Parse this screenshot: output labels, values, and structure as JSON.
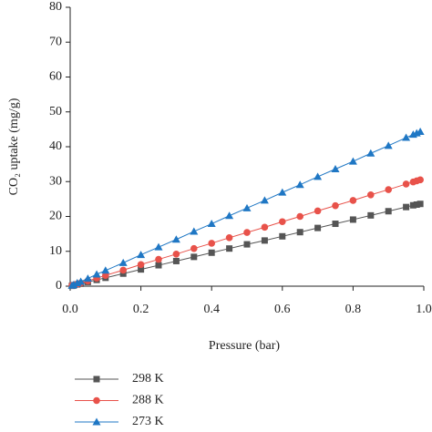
{
  "chart_data": {
    "type": "line",
    "xlabel": "Pressure (bar)",
    "ylabel": "CO₂ uptake (mg/g)",
    "x": [
      0.005,
      0.01,
      0.02,
      0.03,
      0.05,
      0.075,
      0.1,
      0.15,
      0.2,
      0.25,
      0.3,
      0.35,
      0.4,
      0.45,
      0.5,
      0.55,
      0.6,
      0.65,
      0.7,
      0.75,
      0.8,
      0.85,
      0.9,
      0.95,
      0.97,
      0.98,
      0.99
    ],
    "series": [
      {
        "name": "298 K",
        "color": "#555555",
        "marker": "square",
        "values": [
          0.1,
          0.2,
          0.5,
          0.7,
          1.2,
          1.8,
          2.4,
          3.6,
          4.8,
          6.0,
          7.2,
          8.4,
          9.6,
          10.8,
          12.0,
          13.1,
          14.3,
          15.5,
          16.7,
          17.9,
          19.1,
          20.3,
          21.5,
          22.7,
          23.2,
          23.4,
          23.6
        ]
      },
      {
        "name": "288 K",
        "color": "#e8524a",
        "marker": "circle",
        "values": [
          0.2,
          0.3,
          0.6,
          0.9,
          1.5,
          2.3,
          3.1,
          4.6,
          6.2,
          7.7,
          9.2,
          10.8,
          12.3,
          13.9,
          15.4,
          16.9,
          18.5,
          20.0,
          21.6,
          23.1,
          24.6,
          26.2,
          27.7,
          29.3,
          29.9,
          30.2,
          30.5
        ]
      },
      {
        "name": "273 K",
        "color": "#1f77c4",
        "marker": "triangle",
        "values": [
          0.2,
          0.4,
          0.9,
          1.3,
          2.2,
          3.4,
          4.5,
          6.7,
          9.0,
          11.2,
          13.4,
          15.7,
          17.9,
          20.2,
          22.4,
          24.6,
          26.9,
          29.1,
          31.4,
          33.6,
          35.8,
          38.1,
          40.3,
          42.6,
          43.5,
          43.9,
          44.3
        ]
      }
    ],
    "xlim": [
      0,
      1
    ],
    "xticks": [
      {
        "value": 0,
        "label": "0.0"
      },
      0.2,
      0.4,
      0.6,
      0.8,
      {
        "value": 1,
        "label": "1.0"
      }
    ],
    "ylim": [
      0,
      80
    ],
    "yticks": [
      0,
      10,
      20,
      30,
      40,
      50,
      60,
      70,
      80
    ],
    "legend": "below"
  }
}
